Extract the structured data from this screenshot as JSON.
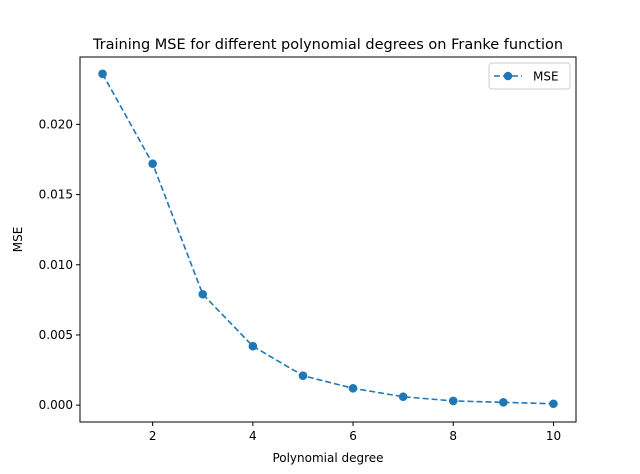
{
  "chart_data": {
    "type": "line",
    "title": "Training MSE for different polynomial degrees on Franke function",
    "xlabel": "Polynomial degree",
    "ylabel": "MSE",
    "xlim": [
      0.55,
      10.45
    ],
    "ylim": [
      -0.0012,
      0.0248
    ],
    "x_ticks": [
      2,
      4,
      6,
      8,
      10
    ],
    "x_tick_labels": [
      "2",
      "4",
      "6",
      "8",
      "10"
    ],
    "y_ticks": [
      0.0,
      0.005,
      0.01,
      0.015,
      0.02
    ],
    "y_tick_labels": [
      "0.000",
      "0.005",
      "0.010",
      "0.015",
      "0.020"
    ],
    "grid": false,
    "legend_position": "top-right",
    "series": [
      {
        "name": "MSE",
        "color": "#1f77b4",
        "line_style": "dashed",
        "marker": "circle",
        "x": [
          1,
          2,
          3,
          4,
          5,
          6,
          7,
          8,
          9,
          10
        ],
        "y": [
          0.0236,
          0.0172,
          0.0079,
          0.0042,
          0.0021,
          0.0012,
          0.0006,
          0.0003,
          0.0002,
          0.0001
        ]
      }
    ]
  }
}
